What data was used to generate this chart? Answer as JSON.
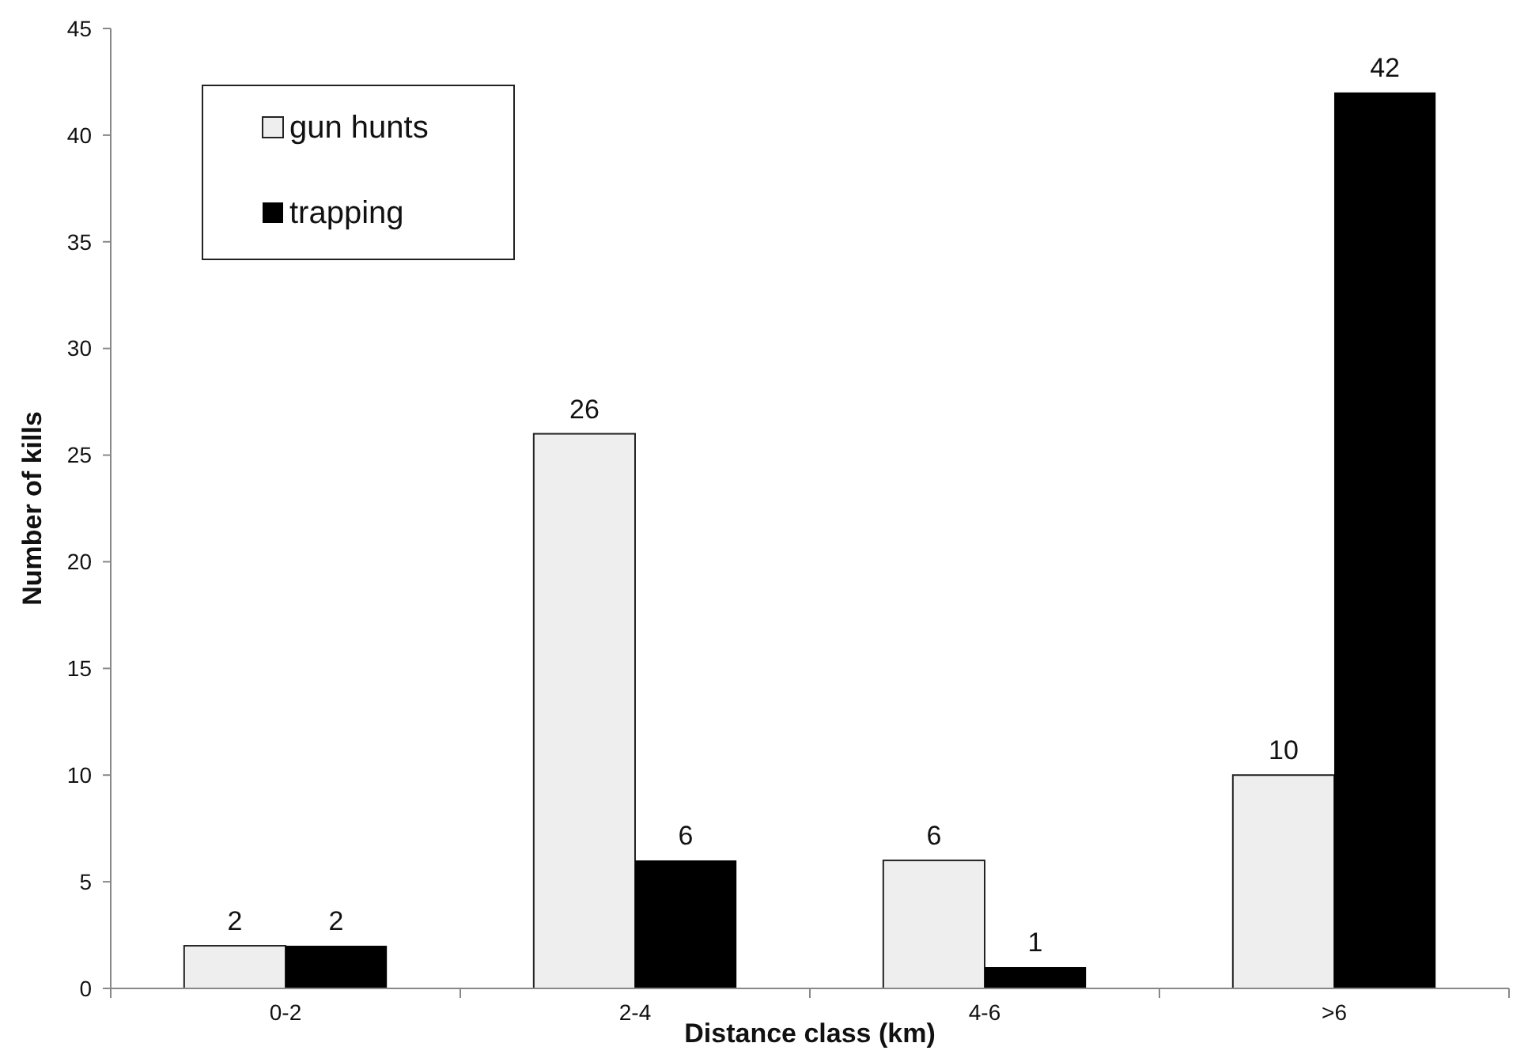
{
  "chart_data": {
    "type": "bar",
    "xlabel": "Distance class (km)",
    "ylabel": "Number of kills",
    "categories": [
      "0-2",
      "2-4",
      "4-6",
      ">6"
    ],
    "series": [
      {
        "name": "gun hunts",
        "color": "#eeeeee",
        "values": [
          2,
          26,
          6,
          10
        ]
      },
      {
        "name": "trapping",
        "color": "#000000",
        "values": [
          2,
          6,
          1,
          42
        ]
      }
    ],
    "ylim": [
      0,
      45
    ],
    "yticks": [
      0,
      5,
      10,
      15,
      20,
      25,
      30,
      35,
      40,
      45
    ],
    "grid": false,
    "legend": "top left",
    "data_labels": true
  }
}
